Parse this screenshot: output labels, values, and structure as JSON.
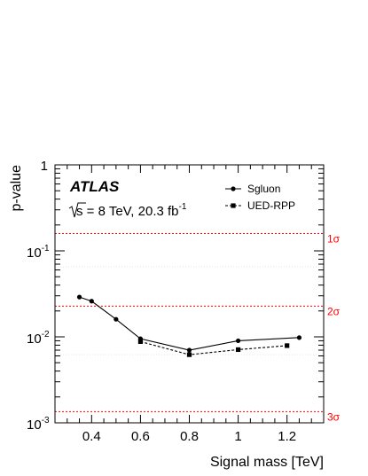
{
  "chart_data": {
    "type": "line",
    "xlabel": "Signal mass [TeV]",
    "ylabel": "p-value",
    "xlim": [
      0.25,
      1.35
    ],
    "ylim": [
      0.001,
      1
    ],
    "y_scale": "log",
    "x_ticks": [
      0.4,
      0.6,
      0.8,
      1.0,
      1.2
    ],
    "x_tick_labels": [
      "0.4",
      "0.6",
      "0.8",
      "1",
      "1.2"
    ],
    "y_tick_labels": [
      {
        "base": "10",
        "exp": "-3",
        "value": 0.001
      },
      {
        "base": "10",
        "exp": "-2",
        "value": 0.01
      },
      {
        "base": "10",
        "exp": "-1",
        "value": 0.1
      },
      {
        "base": "1",
        "exp": "",
        "value": 1
      }
    ],
    "atlas_label": "ATLAS",
    "energy_label": {
      "sqrt": "s",
      "text": " = 8 TeV, 20.3 fb",
      "sup": "-1"
    },
    "legend": {
      "position": "top-right"
    },
    "series": [
      {
        "name": "Sgluon",
        "style": "solid",
        "marker": "circle",
        "x": [
          0.35,
          0.4,
          0.5,
          0.6,
          0.8,
          1.0,
          1.25
        ],
        "y": [
          0.029,
          0.026,
          0.016,
          0.0095,
          0.007,
          0.009,
          0.0098
        ]
      },
      {
        "name": "UED-RPP",
        "style": "dashed",
        "marker": "square",
        "x": [
          0.6,
          0.8,
          1.0,
          1.2
        ],
        "y": [
          0.0088,
          0.0062,
          0.0071,
          0.0079
        ]
      }
    ],
    "significance_lines": [
      {
        "label": "1σ",
        "p": 0.1587
      },
      {
        "label": "2σ",
        "p": 0.02275
      },
      {
        "label": "3σ",
        "p": 0.00135
      }
    ],
    "colors": {
      "significance": "#ff0000",
      "series": "#000000"
    }
  }
}
